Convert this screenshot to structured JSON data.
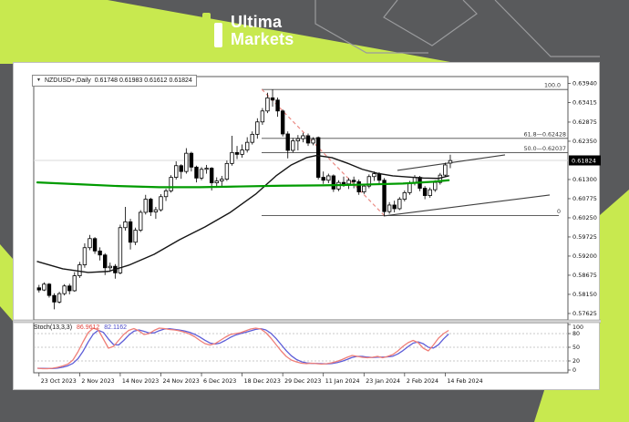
{
  "header": {
    "brand_line1": "Ultima",
    "brand_line2": "Markets"
  },
  "colors": {
    "lime": "#c8e94f",
    "header_gray": "#595a5c",
    "white": "#ffffff",
    "outline_gray": "#9a9b9d",
    "bull": "#ffffff",
    "bear": "#000000",
    "wick": "#000000",
    "ma_fast_green": "#009b00",
    "ma_slow_black": "#151515",
    "fib_line": "#4a4a4a",
    "fib_anchor_red": "#eb8b85",
    "trendline": "#3f3f3f",
    "stoch_main_red": "#ef7f78",
    "stoch_signal_blue": "#5d5dd8",
    "price_box_bg": "#000000",
    "price_box_text": "#ffffff",
    "grid_light": "#d9d9d9"
  },
  "chart_window": {
    "title": {
      "dropdown_icon": "▼",
      "symbol_tf": "NZDUSD+,Daily",
      "ohlc": "0.61748 0.61983 0.61612 0.61824"
    },
    "stoch": {
      "name": "Stoch(13,3,3)",
      "main_value": "86.9612",
      "signal_value": "82.1162"
    }
  },
  "chart_data": {
    "type": "candlestick",
    "symbol": "NZDUSD+",
    "timeframe": "Daily",
    "current_bar": {
      "open": 0.61748,
      "high": 0.61983,
      "low": 0.61612,
      "close": 0.61824
    },
    "y_axis_labels": [
      "0.63940",
      "0.63415",
      "0.62875",
      "0.62350",
      "0.61300",
      "0.60775",
      "0.60250",
      "0.59725",
      "0.59200",
      "0.58675",
      "0.58150",
      "0.57625"
    ],
    "y_axis_current": "0.61824",
    "x_axis_labels": [
      "23 Oct 2023",
      "2 Nov 2023",
      "14 Nov 2023",
      "24 Nov 2023",
      "6 Dec 2023",
      "18 Dec 2023",
      "29 Dec 2023",
      "11 Jan 2024",
      "23 Jan 2024",
      "2 Feb 2024",
      "14 Feb 2024"
    ],
    "candles": [
      [
        0.5833,
        0.5841,
        0.582,
        0.5827
      ],
      [
        0.5827,
        0.5848,
        0.5824,
        0.5843
      ],
      [
        0.5843,
        0.5846,
        0.5806,
        0.5812
      ],
      [
        0.5812,
        0.5818,
        0.5774,
        0.5794
      ],
      [
        0.5794,
        0.5822,
        0.579,
        0.5817
      ],
      [
        0.5817,
        0.5843,
        0.5812,
        0.5838
      ],
      [
        0.5838,
        0.5844,
        0.5815,
        0.5825
      ],
      [
        0.5825,
        0.5876,
        0.5822,
        0.5866
      ],
      [
        0.5866,
        0.5904,
        0.586,
        0.5896
      ],
      [
        0.5896,
        0.5955,
        0.5888,
        0.5943
      ],
      [
        0.5943,
        0.5978,
        0.5936,
        0.5968
      ],
      [
        0.5968,
        0.5972,
        0.5926,
        0.5934
      ],
      [
        0.5934,
        0.5944,
        0.5908,
        0.5923
      ],
      [
        0.5923,
        0.5928,
        0.5868,
        0.5888
      ],
      [
        0.5888,
        0.5902,
        0.5876,
        0.5892
      ],
      [
        0.5892,
        0.5898,
        0.5858,
        0.5874
      ],
      [
        0.5874,
        0.6006,
        0.587,
        0.5998
      ],
      [
        0.5998,
        0.6055,
        0.599,
        0.6014
      ],
      [
        0.6014,
        0.6022,
        0.5938,
        0.5958
      ],
      [
        0.5958,
        0.5998,
        0.595,
        0.5991
      ],
      [
        0.5991,
        0.6046,
        0.5986,
        0.604
      ],
      [
        0.604,
        0.6088,
        0.6034,
        0.6076
      ],
      [
        0.6076,
        0.608,
        0.603,
        0.6041
      ],
      [
        0.6041,
        0.6055,
        0.6022,
        0.6047
      ],
      [
        0.6047,
        0.609,
        0.6042,
        0.6083
      ],
      [
        0.6083,
        0.6105,
        0.6071,
        0.6099
      ],
      [
        0.6099,
        0.6142,
        0.6094,
        0.6136
      ],
      [
        0.6136,
        0.618,
        0.613,
        0.6168
      ],
      [
        0.6168,
        0.6172,
        0.6132,
        0.6152
      ],
      [
        0.6152,
        0.6216,
        0.6146,
        0.6202
      ],
      [
        0.6202,
        0.6206,
        0.6152,
        0.6164
      ],
      [
        0.6164,
        0.6168,
        0.6122,
        0.6134
      ],
      [
        0.6134,
        0.6164,
        0.6128,
        0.6158
      ],
      [
        0.6158,
        0.617,
        0.6146,
        0.6161
      ],
      [
        0.6161,
        0.6164,
        0.61,
        0.6121
      ],
      [
        0.6121,
        0.6136,
        0.6108,
        0.6126
      ],
      [
        0.6126,
        0.614,
        0.6112,
        0.6131
      ],
      [
        0.6131,
        0.6182,
        0.6126,
        0.6174
      ],
      [
        0.6174,
        0.625,
        0.6168,
        0.6204
      ],
      [
        0.6204,
        0.6222,
        0.6186,
        0.6199
      ],
      [
        0.6199,
        0.6226,
        0.619,
        0.6211
      ],
      [
        0.6211,
        0.6246,
        0.6204,
        0.6232
      ],
      [
        0.6232,
        0.6262,
        0.6226,
        0.6254
      ],
      [
        0.6254,
        0.6298,
        0.6242,
        0.6288
      ],
      [
        0.6288,
        0.6326,
        0.628,
        0.6318
      ],
      [
        0.6318,
        0.6368,
        0.6312,
        0.6354
      ],
      [
        0.6354,
        0.6377,
        0.633,
        0.6348
      ],
      [
        0.6348,
        0.6355,
        0.6302,
        0.6318
      ],
      [
        0.6318,
        0.6322,
        0.6248,
        0.6255
      ],
      [
        0.6255,
        0.6262,
        0.6188,
        0.621
      ],
      [
        0.621,
        0.6244,
        0.6204,
        0.6236
      ],
      [
        0.6236,
        0.6252,
        0.621,
        0.6242
      ],
      [
        0.6242,
        0.6258,
        0.6232,
        0.625
      ],
      [
        0.625,
        0.6256,
        0.6222,
        0.623
      ],
      [
        0.623,
        0.6246,
        0.6224,
        0.624
      ],
      [
        0.6245,
        0.6248,
        0.613,
        0.6136
      ],
      [
        0.6136,
        0.6152,
        0.6118,
        0.6128
      ],
      [
        0.6128,
        0.6146,
        0.612,
        0.614
      ],
      [
        0.614,
        0.6144,
        0.6096,
        0.6104
      ],
      [
        0.6104,
        0.6128,
        0.6098,
        0.6122
      ],
      [
        0.6122,
        0.6138,
        0.611,
        0.6118
      ],
      [
        0.6118,
        0.6134,
        0.6104,
        0.6128
      ],
      [
        0.6128,
        0.6138,
        0.6106,
        0.6124
      ],
      [
        0.6124,
        0.613,
        0.6088,
        0.6096
      ],
      [
        0.6096,
        0.6118,
        0.609,
        0.6112
      ],
      [
        0.6112,
        0.6144,
        0.6106,
        0.6138
      ],
      [
        0.6138,
        0.6152,
        0.6126,
        0.6146
      ],
      [
        0.6146,
        0.615,
        0.612,
        0.6128
      ],
      [
        0.6128,
        0.6134,
        0.603,
        0.6042
      ],
      [
        0.6042,
        0.6068,
        0.6036,
        0.606
      ],
      [
        0.606,
        0.6072,
        0.604,
        0.605
      ],
      [
        0.605,
        0.6082,
        0.6046,
        0.6076
      ],
      [
        0.6076,
        0.61,
        0.607,
        0.6094
      ],
      [
        0.6094,
        0.6126,
        0.6088,
        0.612
      ],
      [
        0.612,
        0.6142,
        0.6114,
        0.6136
      ],
      [
        0.6136,
        0.614,
        0.6098,
        0.6106
      ],
      [
        0.6106,
        0.6112,
        0.6076,
        0.6086
      ],
      [
        0.6086,
        0.6108,
        0.608,
        0.6102
      ],
      [
        0.6102,
        0.6128,
        0.6096,
        0.6122
      ],
      [
        0.6122,
        0.6148,
        0.6116,
        0.6142
      ],
      [
        0.6142,
        0.6176,
        0.6136,
        0.617
      ],
      [
        0.6175,
        0.6198,
        0.6161,
        0.6182
      ]
    ],
    "overlays": {
      "ma_slow_black": [
        [
          0,
          0.5905
        ],
        [
          5,
          0.5885
        ],
        [
          10,
          0.5875
        ],
        [
          14,
          0.5878
        ],
        [
          18,
          0.5895
        ],
        [
          23,
          0.5925
        ],
        [
          28,
          0.5965
        ],
        [
          33,
          0.6
        ],
        [
          38,
          0.604
        ],
        [
          43,
          0.609
        ],
        [
          47,
          0.614
        ],
        [
          50,
          0.617
        ],
        [
          53,
          0.619
        ],
        [
          55,
          0.6196
        ],
        [
          58,
          0.619
        ],
        [
          61,
          0.6175
        ],
        [
          64,
          0.6158
        ],
        [
          67,
          0.6147
        ],
        [
          70,
          0.614
        ],
        [
          73,
          0.6137
        ],
        [
          76,
          0.6134
        ],
        [
          79,
          0.6133
        ],
        [
          81,
          0.614
        ]
      ],
      "ma_fast_green": [
        [
          0,
          0.6122
        ],
        [
          8,
          0.6117
        ],
        [
          16,
          0.6112
        ],
        [
          24,
          0.6109
        ],
        [
          32,
          0.6109
        ],
        [
          40,
          0.6111
        ],
        [
          48,
          0.6113
        ],
        [
          56,
          0.6114
        ],
        [
          64,
          0.6116
        ],
        [
          72,
          0.6119
        ],
        [
          78,
          0.6124
        ],
        [
          81,
          0.6128
        ]
      ],
      "fib_levels": [
        {
          "label": "100.0",
          "price": 0.6377,
          "short_right": false
        },
        {
          "label": "61.8—0.62428",
          "price": 0.62428,
          "short_right": false
        },
        {
          "label": "50.0—0.62037",
          "price": 0.62037,
          "short_right": false
        },
        {
          "label": "0",
          "price": 0.6031,
          "short_right": true
        }
      ],
      "fib_anchor_line": {
        "from": [
          44.2,
          0.63774
        ],
        "to": [
          68.4,
          0.60299
        ],
        "style": "dashed"
      },
      "trendlines": [
        {
          "name": "upper-channel",
          "from": [
            70.9,
            0.6155
          ],
          "to": [
            92.1,
            0.61975
          ]
        },
        {
          "name": "lower-channel",
          "from": [
            68.2,
            0.603
          ],
          "to": [
            100.9,
            0.60875
          ]
        }
      ],
      "gridline_price": 0.61825
    },
    "stochastic": {
      "levels": [
        80,
        50,
        20
      ],
      "axis_labels": [
        100,
        80,
        50,
        20,
        0
      ],
      "main": [
        4,
        3,
        3,
        4,
        6,
        9,
        13,
        22,
        40,
        62,
        82,
        92,
        88,
        68,
        48,
        52,
        65,
        78,
        87,
        91,
        86,
        78,
        80,
        87,
        92,
        91,
        89,
        88,
        86,
        83,
        79,
        73,
        65,
        58,
        55,
        58,
        65,
        72,
        78,
        80,
        82,
        86,
        90,
        92,
        90,
        82,
        70,
        56,
        42,
        30,
        22,
        18,
        15,
        14,
        15,
        14,
        13,
        14,
        16,
        19,
        23,
        28,
        32,
        30,
        28,
        27,
        28,
        30,
        27,
        30,
        34,
        42,
        52,
        60,
        65,
        60,
        48,
        42,
        55,
        70,
        80,
        87
      ]
    }
  }
}
